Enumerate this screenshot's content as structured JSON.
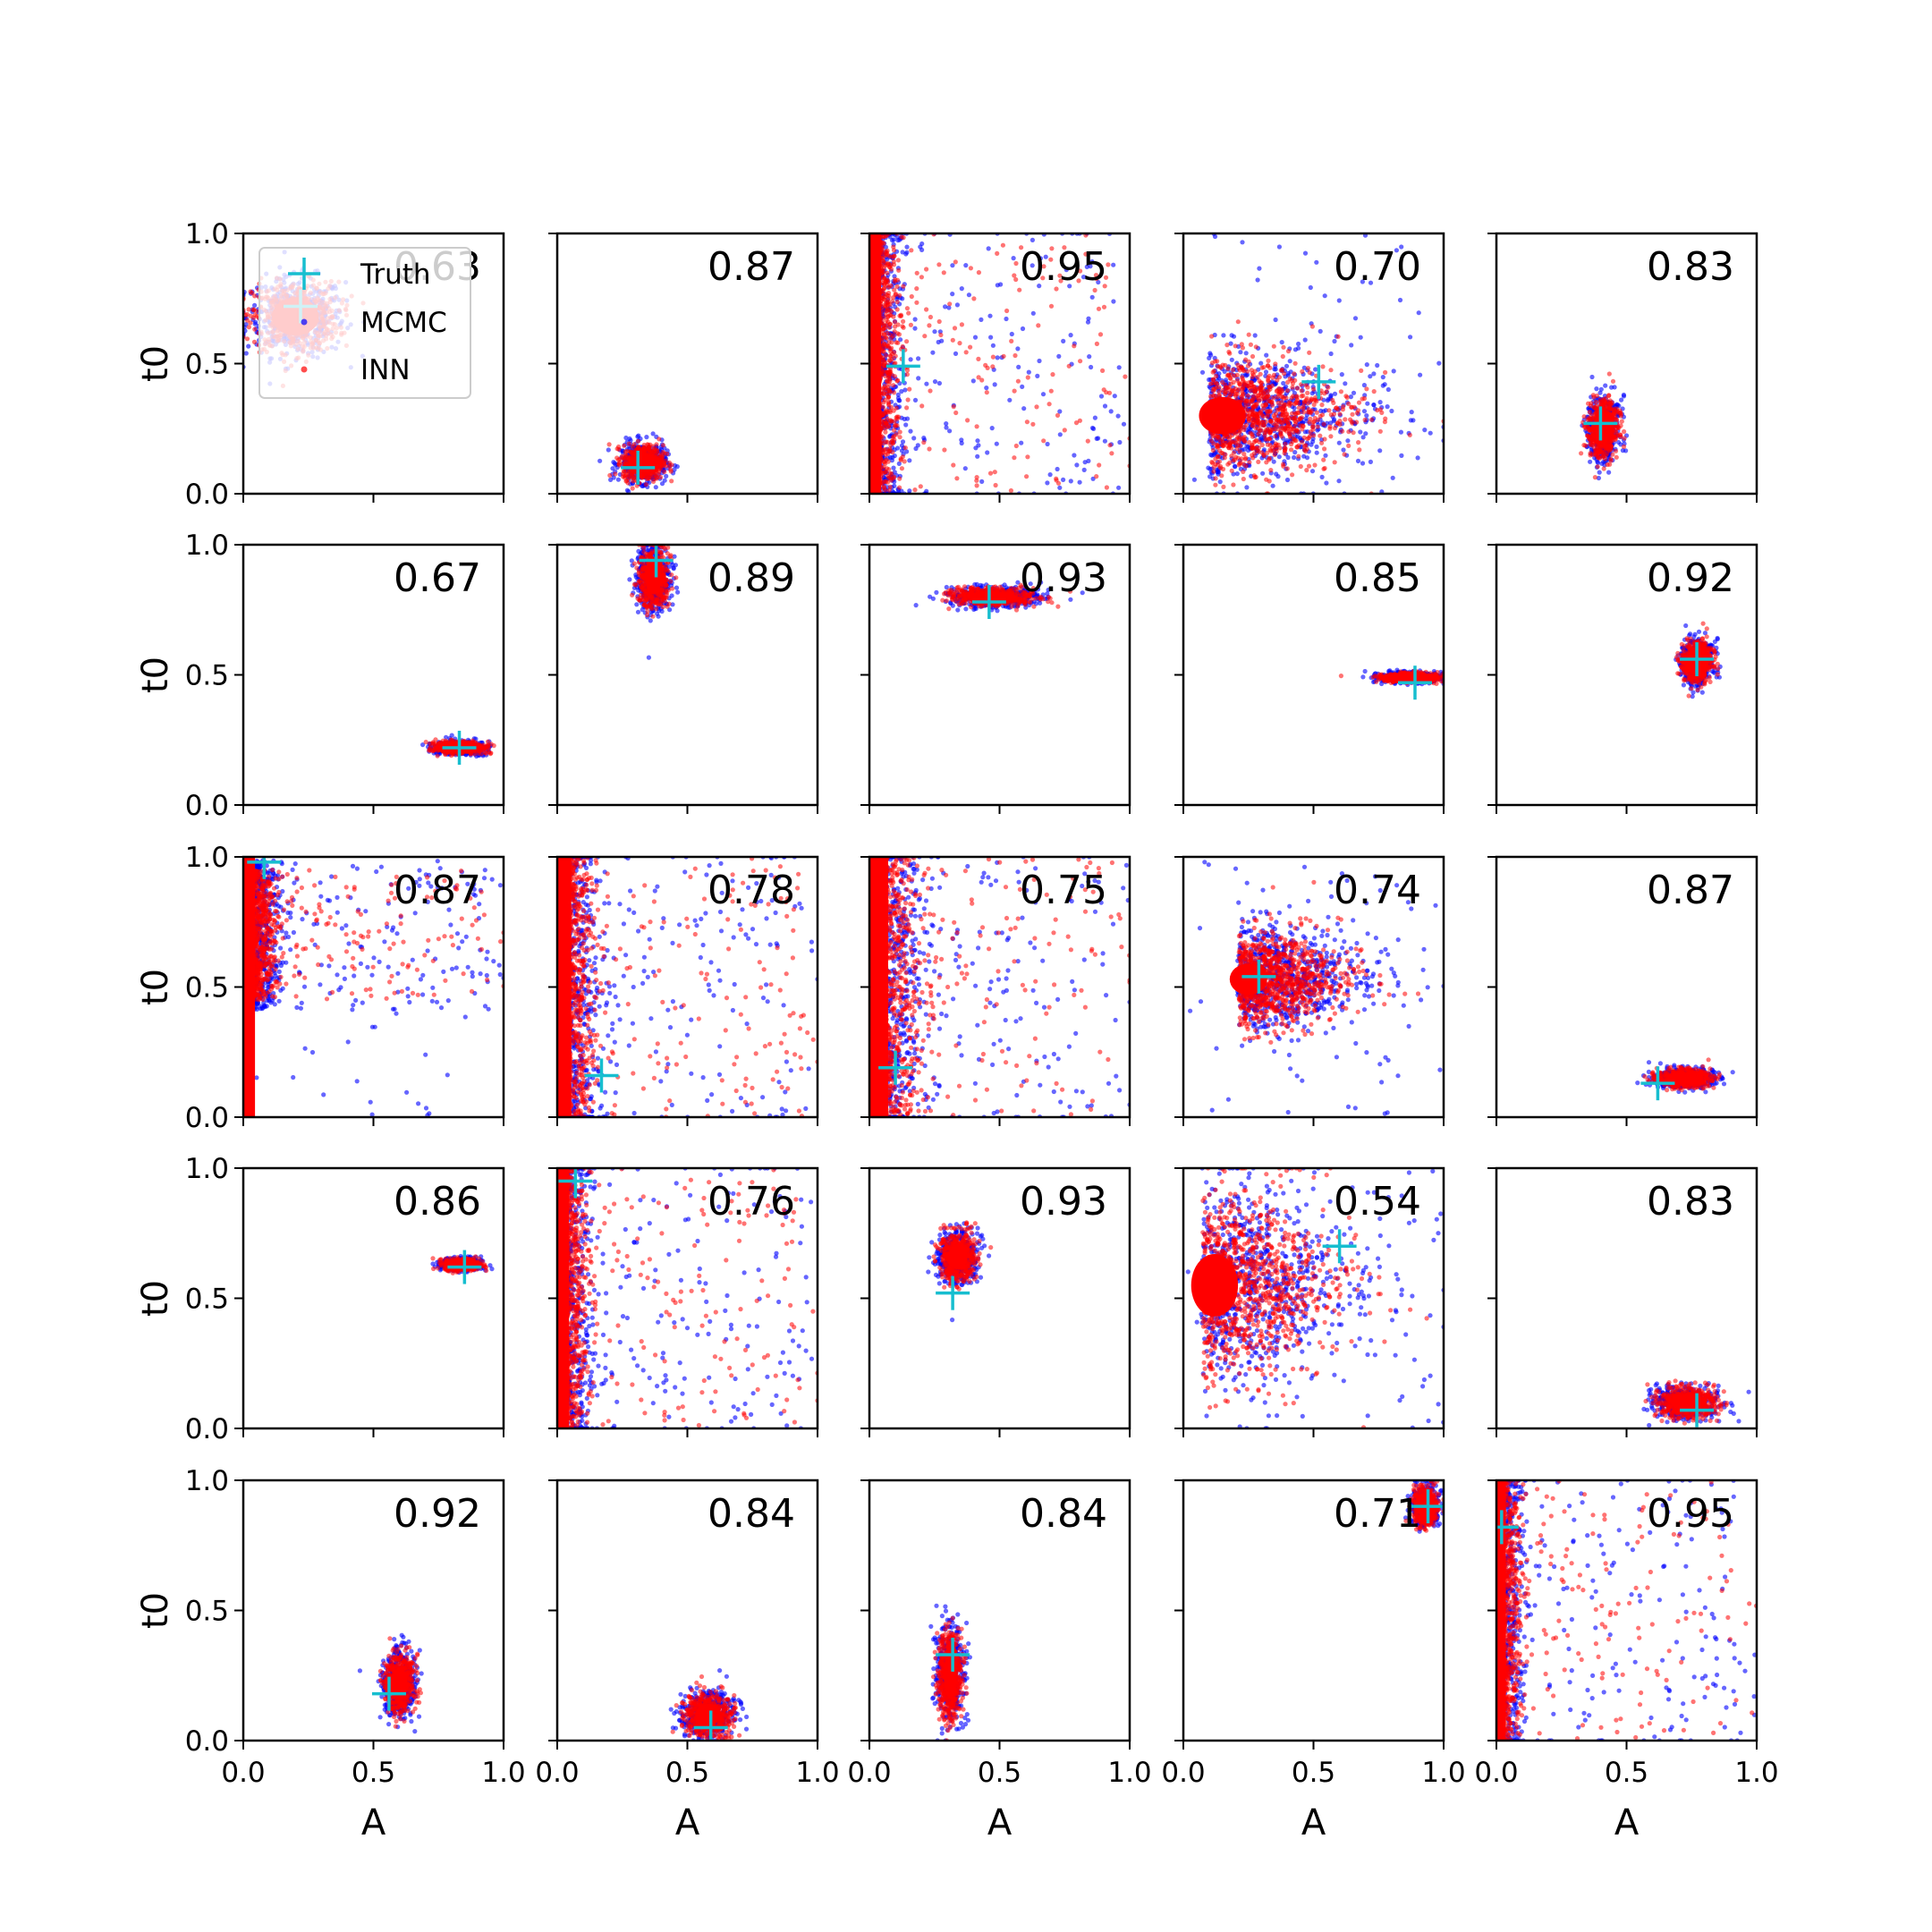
{
  "chart_data": {
    "type": "scatter",
    "grid": "5x5 small multiples",
    "xlabel": "A",
    "ylabel": "t0",
    "xlim": [
      0,
      1
    ],
    "ylim": [
      0,
      1
    ],
    "xticks": [
      "0.0",
      "0.5",
      "1.0"
    ],
    "yticks": [
      "0.0",
      "0.5",
      "1.0"
    ],
    "legend": {
      "placement": "top-left (first panel)",
      "entries": [
        {
          "label": "Truth",
          "color": "#17becf",
          "marker": "plus"
        },
        {
          "label": "MCMC",
          "color": "#0000ff",
          "marker": "dot"
        },
        {
          "label": "INN",
          "color": "#ff0000",
          "marker": "dot"
        }
      ]
    },
    "colors": {
      "truth": "#17becf",
      "mcmc": "#0000ff",
      "inn": "#ff0000"
    },
    "panels": [
      {
        "score": "0.63",
        "truth": [
          0.22,
          0.72
        ],
        "inn": {
          "shape": "blob",
          "cx": 0.2,
          "cy": 0.68,
          "sx": 0.15,
          "sy": 0.12
        }
      },
      {
        "score": "0.87",
        "truth": [
          0.31,
          0.1
        ],
        "inn": {
          "shape": "blob",
          "cx": 0.33,
          "cy": 0.12,
          "sx": 0.07,
          "sy": 0.06
        }
      },
      {
        "score": "0.95",
        "truth": [
          0.13,
          0.49
        ],
        "inn": {
          "shape": "wall",
          "cx": 0.05,
          "cy": 0.5,
          "sx": 0.05,
          "sy": 0.5
        }
      },
      {
        "score": "0.70",
        "truth": [
          0.52,
          0.43
        ],
        "inn": {
          "shape": "fan",
          "cx": 0.15,
          "cy": 0.3,
          "sx": 0.15,
          "sy": 0.12
        }
      },
      {
        "score": "0.83",
        "truth": [
          0.4,
          0.27
        ],
        "inn": {
          "shape": "blob",
          "cx": 0.41,
          "cy": 0.25,
          "sx": 0.05,
          "sy": 0.1
        }
      },
      {
        "score": "0.67",
        "truth": [
          0.83,
          0.22
        ],
        "inn": {
          "shape": "blob",
          "cx": 0.83,
          "cy": 0.22,
          "sx": 0.08,
          "sy": 0.02
        }
      },
      {
        "score": "0.89",
        "truth": [
          0.38,
          0.94
        ],
        "inn": {
          "shape": "blob",
          "cx": 0.37,
          "cy": 0.87,
          "sx": 0.05,
          "sy": 0.1
        }
      },
      {
        "score": "0.93",
        "truth": [
          0.46,
          0.78
        ],
        "inn": {
          "shape": "blob",
          "cx": 0.48,
          "cy": 0.8,
          "sx": 0.14,
          "sy": 0.03
        }
      },
      {
        "score": "0.85",
        "truth": [
          0.89,
          0.47
        ],
        "inn": {
          "shape": "blob",
          "cx": 0.87,
          "cy": 0.49,
          "sx": 0.1,
          "sy": 0.015
        }
      },
      {
        "score": "0.92",
        "truth": [
          0.77,
          0.56
        ],
        "inn": {
          "shape": "blob",
          "cx": 0.77,
          "cy": 0.55,
          "sx": 0.05,
          "sy": 0.07
        }
      },
      {
        "score": "0.87",
        "truth": [
          0.08,
          0.98
        ],
        "inn": {
          "shape": "wall",
          "cx": 0.08,
          "cy": 0.7,
          "sx": 0.05,
          "sy": 0.25
        }
      },
      {
        "score": "0.78",
        "truth": [
          0.17,
          0.16
        ],
        "inn": {
          "shape": "wall",
          "cx": 0.06,
          "cy": 0.5,
          "sx": 0.06,
          "sy": 0.5
        }
      },
      {
        "score": "0.75",
        "truth": [
          0.1,
          0.19
        ],
        "inn": {
          "shape": "wall",
          "cx": 0.08,
          "cy": 0.5,
          "sx": 0.08,
          "sy": 0.5
        }
      },
      {
        "score": "0.74",
        "truth": [
          0.29,
          0.54
        ],
        "inn": {
          "shape": "fan",
          "cx": 0.25,
          "cy": 0.53,
          "sx": 0.12,
          "sy": 0.1
        }
      },
      {
        "score": "0.87",
        "truth": [
          0.62,
          0.13
        ],
        "inn": {
          "shape": "blob",
          "cx": 0.72,
          "cy": 0.15,
          "sx": 0.09,
          "sy": 0.03
        }
      },
      {
        "score": "0.86",
        "truth": [
          0.85,
          0.62
        ],
        "inn": {
          "shape": "blob",
          "cx": 0.84,
          "cy": 0.63,
          "sx": 0.06,
          "sy": 0.02
        }
      },
      {
        "score": "0.76",
        "truth": [
          0.07,
          0.95
        ],
        "inn": {
          "shape": "wall",
          "cx": 0.05,
          "cy": 0.5,
          "sx": 0.05,
          "sy": 0.5
        }
      },
      {
        "score": "0.93",
        "truth": [
          0.32,
          0.52
        ],
        "inn": {
          "shape": "blob",
          "cx": 0.34,
          "cy": 0.66,
          "sx": 0.06,
          "sy": 0.08
        }
      },
      {
        "score": "0.54",
        "truth": [
          0.6,
          0.7
        ],
        "inn": {
          "shape": "fan",
          "cx": 0.12,
          "cy": 0.55,
          "sx": 0.15,
          "sy": 0.2
        }
      },
      {
        "score": "0.83",
        "truth": [
          0.77,
          0.07
        ],
        "inn": {
          "shape": "blob",
          "cx": 0.73,
          "cy": 0.1,
          "sx": 0.1,
          "sy": 0.05
        }
      },
      {
        "score": "0.92",
        "truth": [
          0.56,
          0.18
        ],
        "inn": {
          "shape": "blob",
          "cx": 0.6,
          "cy": 0.22,
          "sx": 0.05,
          "sy": 0.1
        }
      },
      {
        "score": "0.84",
        "truth": [
          0.59,
          0.05
        ],
        "inn": {
          "shape": "blob",
          "cx": 0.58,
          "cy": 0.1,
          "sx": 0.08,
          "sy": 0.07
        }
      },
      {
        "score": "0.84",
        "truth": [
          0.32,
          0.33
        ],
        "inn": {
          "shape": "blob",
          "cx": 0.31,
          "cy": 0.25,
          "sx": 0.04,
          "sy": 0.15
        }
      },
      {
        "score": "0.71",
        "truth": [
          0.94,
          0.9
        ],
        "inn": {
          "shape": "blob",
          "cx": 0.93,
          "cy": 0.9,
          "sx": 0.04,
          "sy": 0.06
        }
      },
      {
        "score": "0.95",
        "truth": [
          0.02,
          0.82
        ],
        "inn": {
          "shape": "wall",
          "cx": 0.03,
          "cy": 0.5,
          "sx": 0.04,
          "sy": 0.5
        }
      }
    ]
  }
}
